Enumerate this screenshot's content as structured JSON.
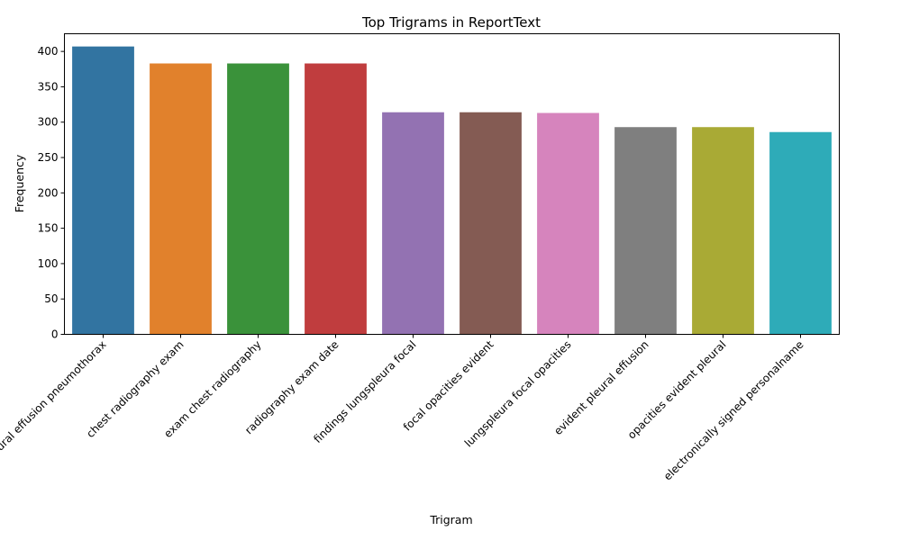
{
  "chart_data": {
    "type": "bar",
    "title": "Top Trigrams in ReportText",
    "xlabel": "Trigram",
    "ylabel": "Frequency",
    "ylim": [
      0,
      425
    ],
    "yticks": [
      0,
      50,
      100,
      150,
      200,
      250,
      300,
      350,
      400
    ],
    "grid": false,
    "categories": [
      "pleural effusion pneumothorax",
      "chest radiography exam",
      "exam chest radiography",
      "radiography exam date",
      "findings lungspleura focal",
      "focal opacities evident",
      "lungspleura focal opacities",
      "evident pleural effusion",
      "opacities evident pleural",
      "electronically signed personalname"
    ],
    "values": [
      407,
      383,
      383,
      383,
      314,
      314,
      313,
      293,
      293,
      286
    ],
    "colors": [
      "#3274a1",
      "#e1812c",
      "#3a923a",
      "#c03d3e",
      "#9372b2",
      "#845b53",
      "#d684bd",
      "#7f7f7f",
      "#a9aa35",
      "#2eabb8"
    ]
  }
}
